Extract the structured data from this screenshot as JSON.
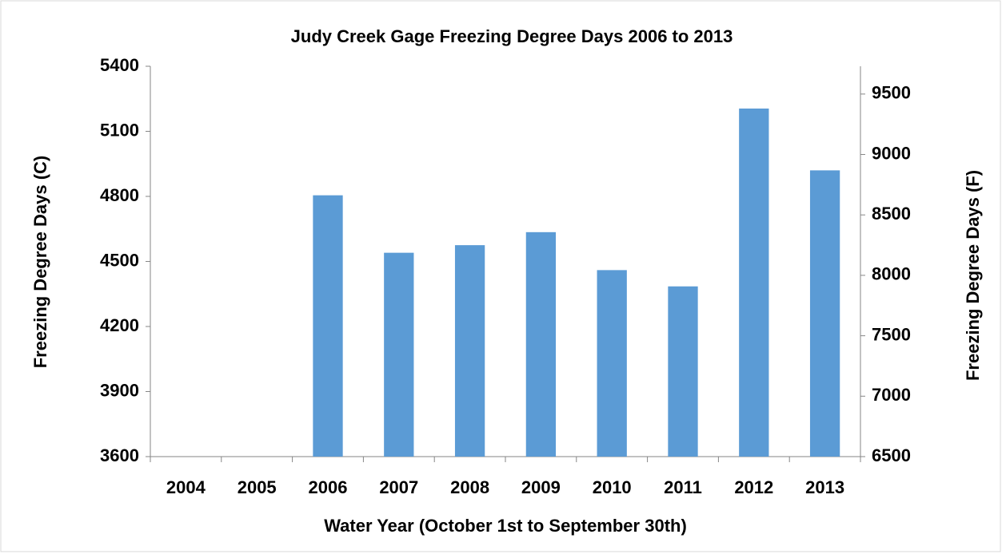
{
  "chart_data": {
    "type": "bar",
    "title": "Judy Creek Gage Freezing Degree Days 2006 to 2013",
    "x_label": "Water Year (October 1st to September 30th)",
    "y_label": "Freezing Degree Days (C)",
    "y2_label": "Freezing Degree Days (F)",
    "categories": [
      "2004",
      "2005",
      "2006",
      "2007",
      "2008",
      "2009",
      "2010",
      "2011",
      "2012",
      "2013"
    ],
    "values": [
      null,
      null,
      4805,
      4540,
      4575,
      4635,
      4460,
      4385,
      5205,
      4920
    ],
    "color": "#5b9bd5",
    "ylim": [
      3600,
      5400
    ],
    "yticks": [
      3600,
      3900,
      4200,
      4500,
      4800,
      5100,
      5400
    ],
    "y2lim": [
      6500,
      9730
    ],
    "y2ticks": [
      6500,
      7000,
      7500,
      8000,
      8500,
      9000,
      9500
    ],
    "grid": false
  }
}
